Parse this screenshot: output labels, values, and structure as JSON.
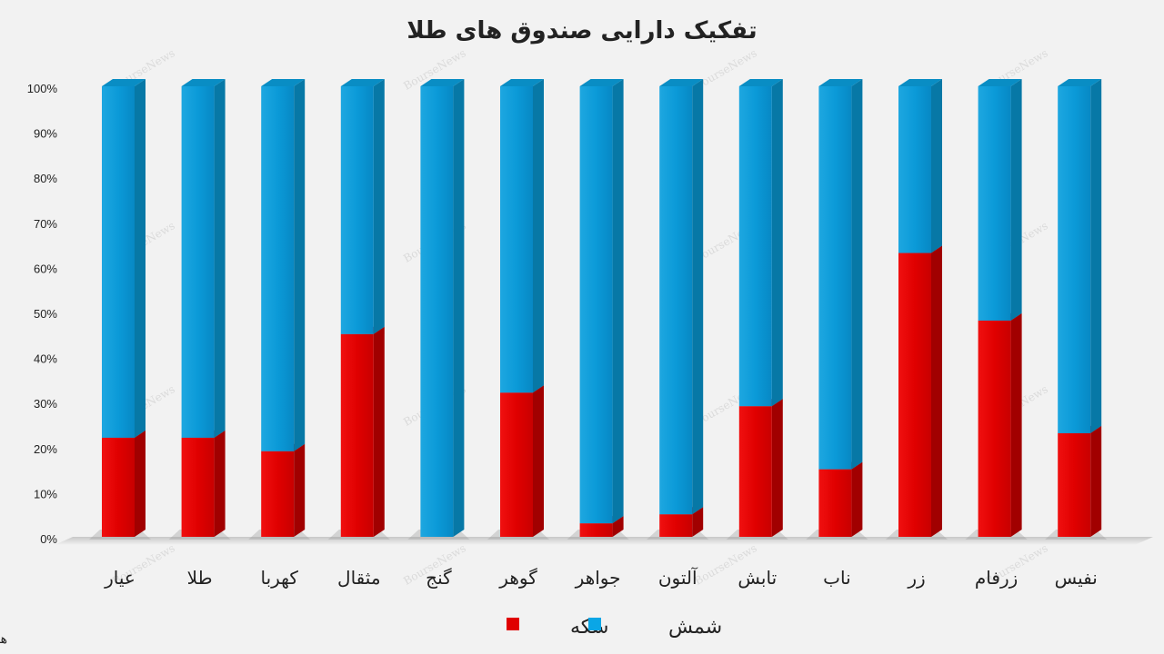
{
  "chart_data": {
    "type": "bar",
    "stacked": true,
    "title": "تفکیک دارایی صندوق های طلا",
    "categories": [
      "عیار",
      "طلا",
      "کهربا",
      "مثقال",
      "گنج",
      "گوهر",
      "جواهر",
      "آلتون",
      "تابش",
      "ناب",
      "زر",
      "زرفام",
      "نفیس"
    ],
    "series": [
      {
        "name": "سکه",
        "color": "#e00000",
        "values": [
          22,
          22,
          19,
          45,
          0,
          32,
          3,
          5,
          29,
          15,
          63,
          48,
          23
        ]
      },
      {
        "name": "شمش",
        "color": "#0aa6e6",
        "values": [
          78,
          78,
          81,
          55,
          100,
          68,
          97,
          95,
          71,
          85,
          37,
          52,
          77
        ]
      }
    ],
    "yticks": [
      "0%",
      "10%",
      "20%",
      "30%",
      "40%",
      "50%",
      "60%",
      "70%",
      "80%",
      "90%",
      "100%"
    ],
    "ylim": [
      0,
      100
    ],
    "legend_position": "bottom",
    "grid": false
  },
  "author": "هادی بهرامی",
  "watermark": "BourseNews"
}
